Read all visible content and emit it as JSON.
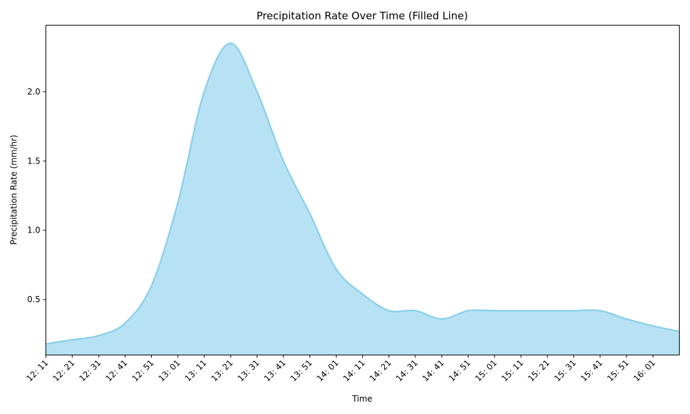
{
  "chart_data": {
    "type": "area",
    "title": "Precipitation Rate Over Time (Filled Line)",
    "xlabel": "Time",
    "ylabel": "Precipitation Rate (mm/hr)",
    "x_tick_labels": [
      "12: 11",
      "12: 21",
      "12: 31",
      "12: 41",
      "12: 51",
      "13: 01",
      "13: 11",
      "13: 21",
      "13: 31",
      "13: 41",
      "13: 51",
      "14: 01",
      "14: 11",
      "14: 21",
      "14: 31",
      "14: 41",
      "14: 51",
      "15: 01",
      "15: 11",
      "15: 21",
      "15: 31",
      "15: 41",
      "15: 51",
      "16: 01"
    ],
    "x": [
      "12:11",
      "12:21",
      "12:31",
      "12:41",
      "12:51",
      "13:01",
      "13:11",
      "13:21",
      "13:31",
      "13:41",
      "13:51",
      "14:01",
      "14:11",
      "14:21",
      "14:31",
      "14:41",
      "14:51",
      "15:01",
      "15:11",
      "15:21",
      "15:31",
      "15:41",
      "15:51",
      "16:01",
      "16:11"
    ],
    "values": [
      0.18,
      0.21,
      0.24,
      0.33,
      0.6,
      1.2,
      2.0,
      2.35,
      2.0,
      1.5,
      1.12,
      0.72,
      0.54,
      0.42,
      0.42,
      0.36,
      0.42,
      0.42,
      0.42,
      0.42,
      0.42,
      0.42,
      0.36,
      0.31,
      0.27
    ],
    "y_ticks": [
      0.5,
      1.0,
      1.5,
      2.0
    ],
    "y_tick_labels": [
      "0.5",
      "1.0",
      "1.5",
      "2.0"
    ],
    "ylim": [
      0.1,
      2.48
    ],
    "xlim": [
      "12:11",
      "16:11"
    ],
    "grid": false,
    "line_color": "#87ceeb",
    "fill_color": "#87ceeb",
    "fill_opacity": 0.6
  }
}
